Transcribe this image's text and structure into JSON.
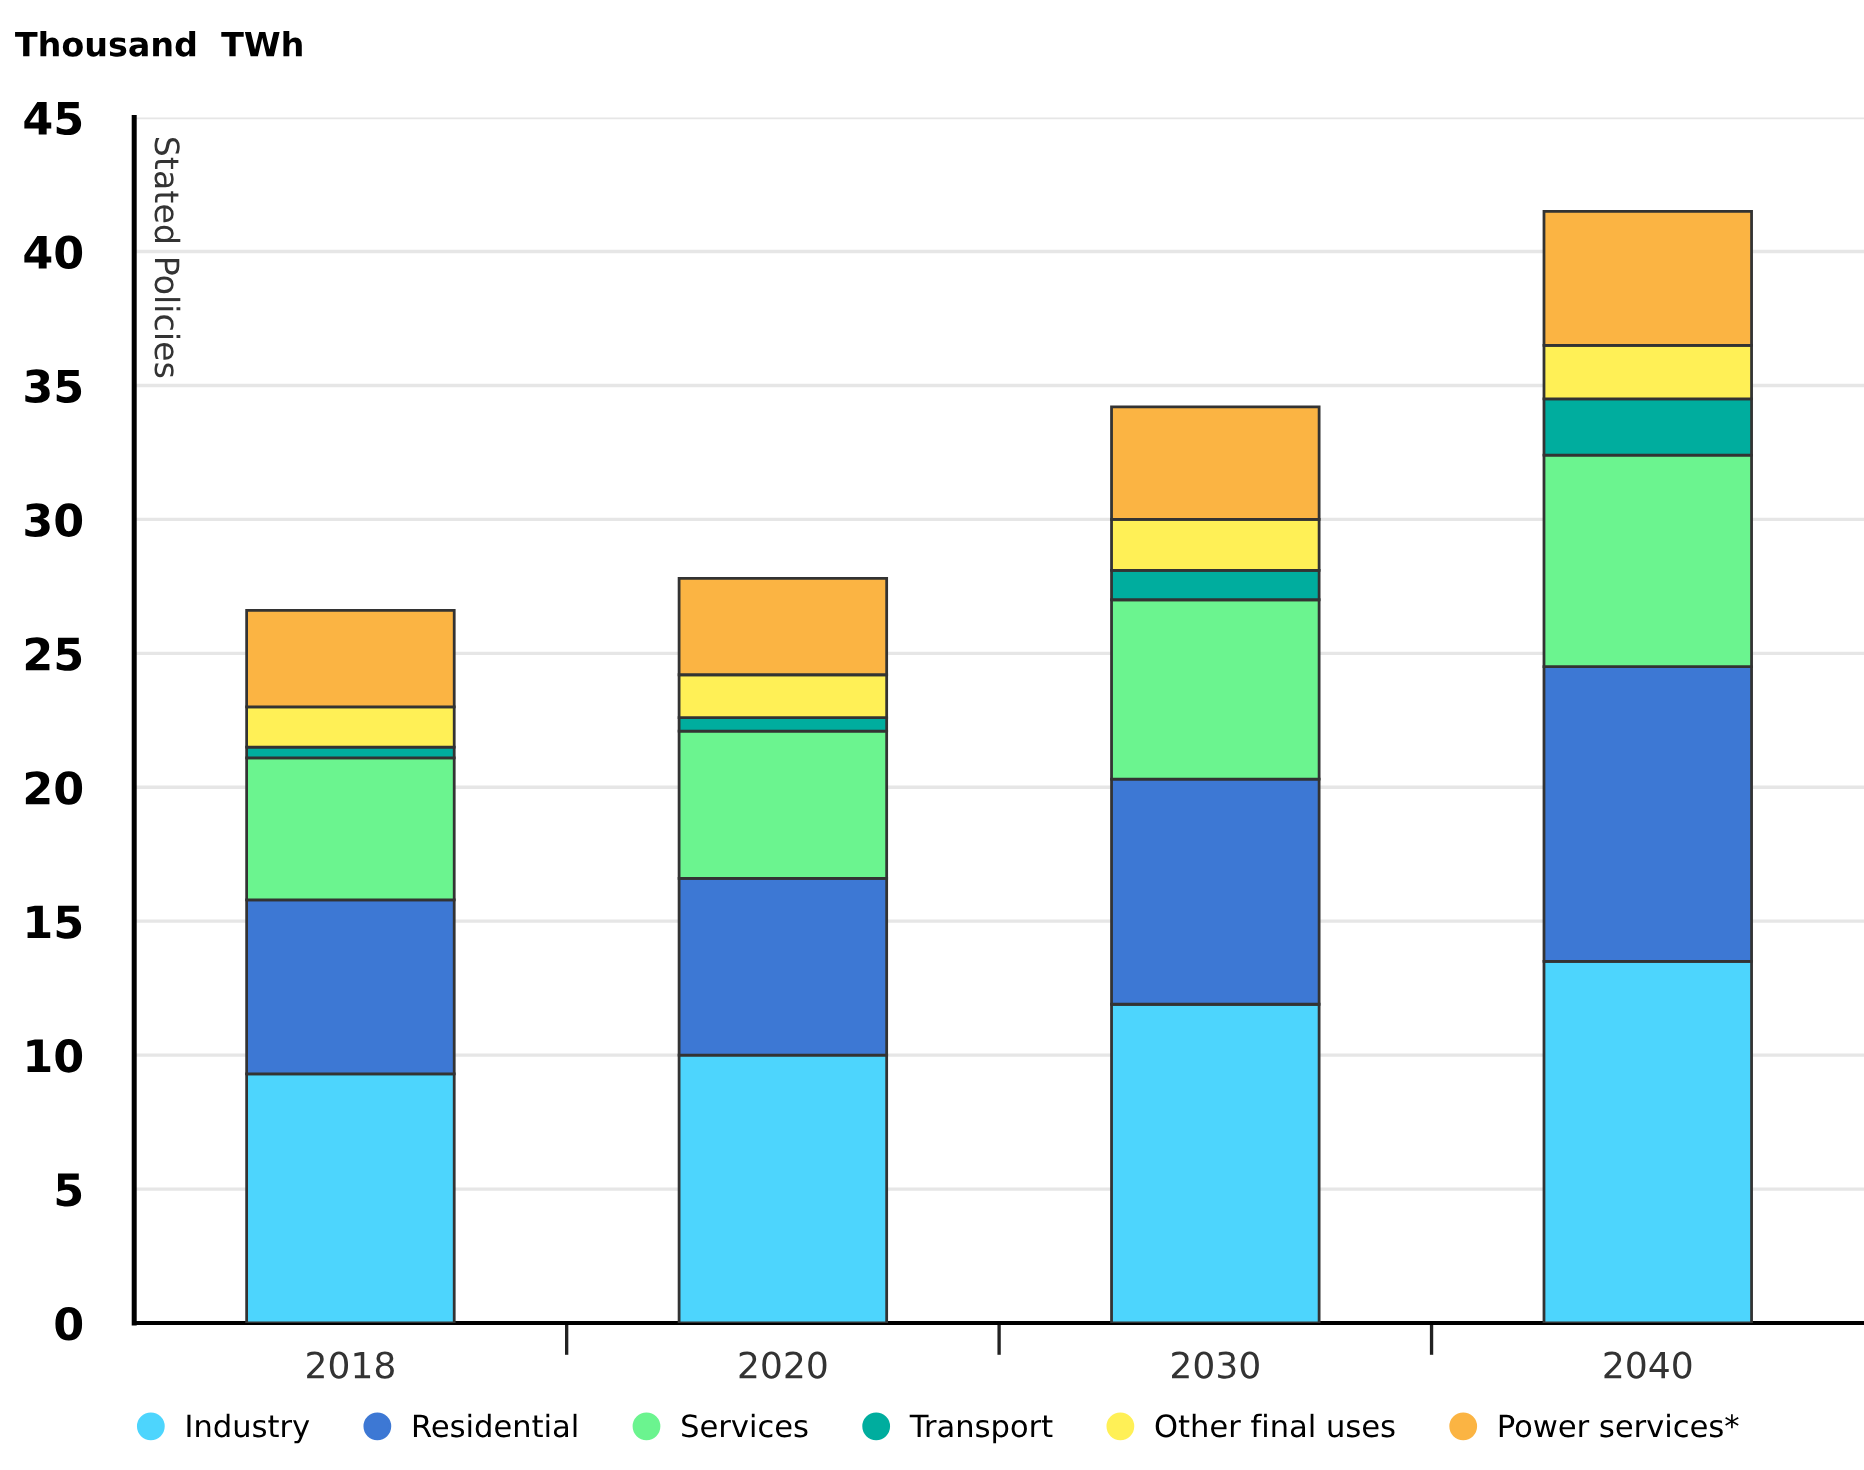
{
  "chart_data": {
    "type": "bar",
    "stacked": true,
    "ylabel": "Thousand  TWh",
    "annotations": [
      "Stated Policies"
    ],
    "categories": [
      "2018",
      "2020",
      "2030",
      "2040"
    ],
    "series": [
      {
        "name": "Industry",
        "color": "#4dd5fd",
        "values": [
          9.3,
          10.0,
          11.9,
          13.5
        ]
      },
      {
        "name": "Residential",
        "color": "#3d78d4",
        "values": [
          6.5,
          6.6,
          8.4,
          11.0
        ]
      },
      {
        "name": "Services",
        "color": "#6bf48f",
        "values": [
          5.3,
          5.5,
          6.7,
          7.9
        ]
      },
      {
        "name": "Transport",
        "color": "#00ad9e",
        "values": [
          0.4,
          0.5,
          1.1,
          2.1
        ]
      },
      {
        "name": "Other final uses",
        "color": "#fff056",
        "values": [
          1.5,
          1.6,
          1.9,
          2.0
        ]
      },
      {
        "name": "Power services*",
        "color": "#fbb443",
        "values": [
          3.6,
          3.6,
          4.2,
          5.0
        ]
      }
    ],
    "ylim": [
      0,
      45
    ],
    "yticks": [
      0,
      5,
      10,
      15,
      20,
      25,
      30,
      35,
      40,
      45
    ],
    "grid": "y",
    "legend": "bottom",
    "marker": "circle"
  }
}
